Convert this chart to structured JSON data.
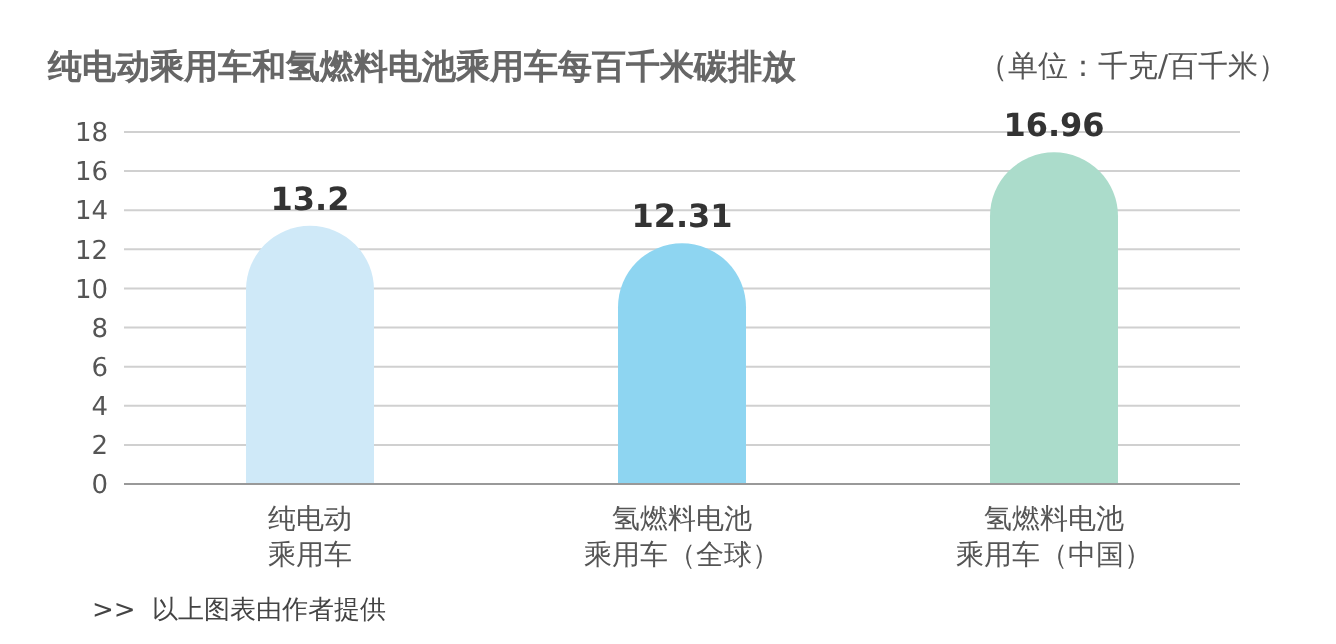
{
  "chart_data": {
    "type": "bar",
    "title": "纯电动乘用车和氢燃料电池乘用车每百千米碳排放",
    "ylabel": "（单位：千克/百千米）",
    "categories": [
      "纯电动乘用车",
      "氢燃料电池乘用车（全球）",
      "氢燃料电池乘用车（中国）"
    ],
    "values": [
      13.2,
      12.31,
      16.96
    ],
    "colors": [
      "#cfe9f8",
      "#8ed5f1",
      "#abdccb"
    ],
    "ylim": [
      0,
      18
    ],
    "yticks": [
      0,
      2,
      4,
      6,
      8,
      10,
      12,
      14,
      16,
      18
    ],
    "grid": "y",
    "data_labels": true,
    "annotations": [
      ">>  以上图表由作者提供"
    ]
  }
}
